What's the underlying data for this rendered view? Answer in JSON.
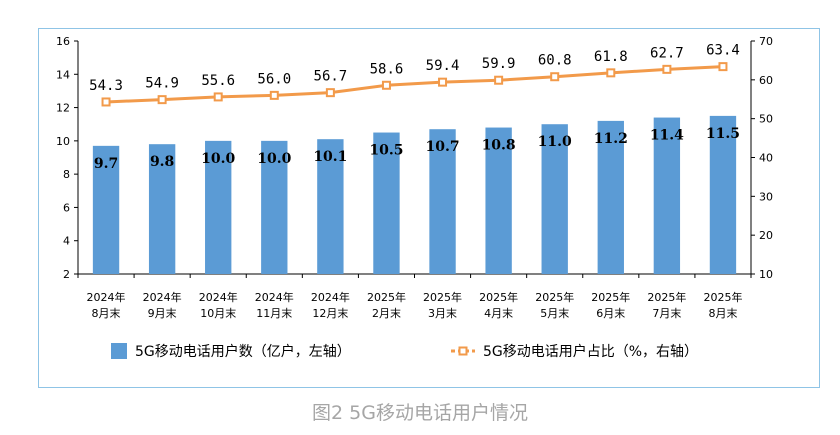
{
  "caption": "图2 5G移动电话用户情况",
  "chart_data": {
    "type": "bar",
    "categories": [
      [
        "2024年",
        "8月末"
      ],
      [
        "2024年",
        "9月末"
      ],
      [
        "2024年",
        "10月末"
      ],
      [
        "2024年",
        "11月末"
      ],
      [
        "2024年",
        "12月末"
      ],
      [
        "2025年",
        "2月末"
      ],
      [
        "2025年",
        "3月末"
      ],
      [
        "2025年",
        "4月末"
      ],
      [
        "2025年",
        "5月末"
      ],
      [
        "2025年",
        "6月末"
      ],
      [
        "2025年",
        "7月末"
      ],
      [
        "2025年",
        "8月末"
      ]
    ],
    "series": [
      {
        "name": "5G移动电话用户数（亿户，左轴）",
        "type": "bar",
        "axis": "left",
        "color": "#5b9bd5",
        "values": [
          9.7,
          9.8,
          10.0,
          10.0,
          10.1,
          10.5,
          10.7,
          10.8,
          11.0,
          11.2,
          11.4,
          11.5
        ],
        "labels": [
          "9.7",
          "9.8",
          "10.0",
          "10.0",
          "10.1",
          "10.5",
          "10.7",
          "10.8",
          "11.0",
          "11.2",
          "11.4",
          "11.5"
        ]
      },
      {
        "name": "5G移动电话用户占比（%，右轴）",
        "type": "line",
        "axis": "right",
        "color": "#f29a4a",
        "values": [
          54.3,
          54.9,
          55.6,
          56.0,
          56.7,
          58.6,
          59.4,
          59.9,
          60.8,
          61.8,
          62.7,
          63.4
        ],
        "labels": [
          "54.3",
          "54.9",
          "55.6",
          "56.0",
          "56.7",
          "58.6",
          "59.4",
          "59.9",
          "60.8",
          "61.8",
          "62.7",
          "63.4"
        ]
      }
    ],
    "y_left": {
      "min": 2,
      "max": 16,
      "ticks": [
        "2",
        "4",
        "6",
        "8",
        "10",
        "12",
        "14",
        "16"
      ]
    },
    "y_right": {
      "min": 10,
      "max": 70,
      "ticks": [
        "10",
        "20",
        "30",
        "40",
        "50",
        "60",
        "70"
      ]
    },
    "legend_position": "bottom",
    "grid": false
  }
}
